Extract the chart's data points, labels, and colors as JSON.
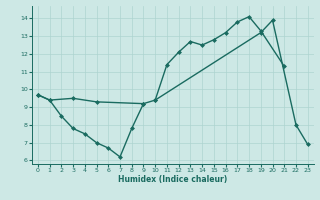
{
  "xlabel": "Humidex (Indice chaleur)",
  "bg_color": "#cde8e5",
  "grid_color": "#aed4d0",
  "line_color": "#1a6b60",
  "xlim": [
    -0.5,
    23.5
  ],
  "ylim": [
    5.8,
    14.7
  ],
  "xticks": [
    0,
    1,
    2,
    3,
    4,
    5,
    6,
    7,
    8,
    9,
    10,
    11,
    12,
    13,
    14,
    15,
    16,
    17,
    18,
    19,
    20,
    21,
    22,
    23
  ],
  "yticks": [
    6,
    7,
    8,
    9,
    10,
    11,
    12,
    13,
    14
  ],
  "lines": [
    {
      "x": [
        0,
        1,
        2,
        3,
        4,
        5,
        6,
        7,
        8,
        9
      ],
      "y": [
        9.7,
        9.4,
        8.5,
        7.8,
        7.5,
        7.0,
        6.7,
        6.2,
        7.8,
        9.2
      ]
    },
    {
      "x": [
        0,
        1,
        3,
        5,
        9,
        10,
        11,
        12,
        13,
        14,
        15,
        16,
        17,
        18,
        19,
        21
      ],
      "y": [
        9.7,
        9.4,
        9.5,
        9.3,
        9.2,
        9.4,
        11.4,
        12.1,
        12.7,
        12.5,
        12.8,
        13.2,
        13.8,
        14.1,
        13.3,
        11.3
      ]
    },
    {
      "x": [
        10,
        19,
        20,
        22,
        23
      ],
      "y": [
        9.4,
        13.2,
        13.9,
        8.0,
        6.9
      ]
    }
  ]
}
